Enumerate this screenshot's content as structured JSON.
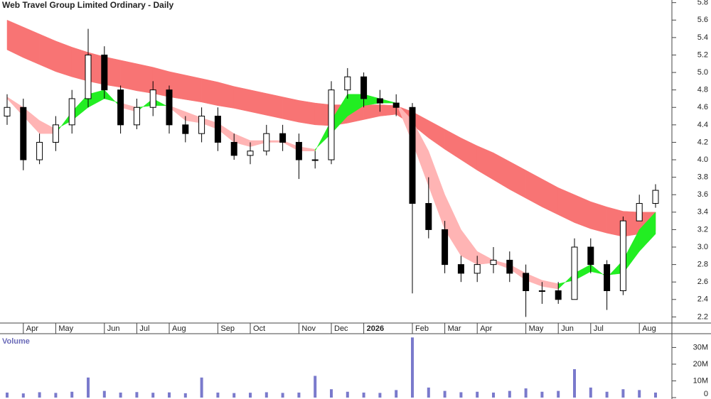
{
  "chart_data": {
    "type": "candlestick",
    "title": "Web Travel Group Limited Ordinary - Daily",
    "categories": [
      null,
      "Apr",
      null,
      "May",
      null,
      null,
      "Jun",
      null,
      "Jul",
      null,
      "Aug",
      null,
      null,
      "Sep",
      null,
      "Oct",
      null,
      null,
      "Nov",
      null,
      "Dec",
      null,
      "2026",
      null,
      null,
      "Feb",
      null,
      "Mar",
      null,
      "Apr",
      null,
      null,
      "May",
      null,
      "Jun",
      null,
      "Jul",
      null,
      null,
      "Aug",
      null
    ],
    "open": [
      4.5,
      4.6,
      4.0,
      4.2,
      4.4,
      4.7,
      5.2,
      4.8,
      4.4,
      4.6,
      4.8,
      4.4,
      4.3,
      4.5,
      4.2,
      4.05,
      4.1,
      4.3,
      4.2,
      4.0,
      4.0,
      4.8,
      4.95,
      4.7,
      4.65,
      4.6,
      3.5,
      3.2,
      2.8,
      2.7,
      2.8,
      2.85,
      2.7,
      2.5,
      2.5,
      2.4,
      3.0,
      2.8,
      2.5,
      3.3,
      3.5
    ],
    "high": [
      4.75,
      4.7,
      4.3,
      4.5,
      4.8,
      5.5,
      5.3,
      4.85,
      4.7,
      4.9,
      4.85,
      4.5,
      4.6,
      4.6,
      4.3,
      4.2,
      4.4,
      4.4,
      4.3,
      4.1,
      4.9,
      5.05,
      5.0,
      4.8,
      4.75,
      4.65,
      3.8,
      3.3,
      2.9,
      2.9,
      3.0,
      2.95,
      2.8,
      2.6,
      2.6,
      3.1,
      3.1,
      2.85,
      3.35,
      3.6,
      3.72
    ],
    "low": [
      4.4,
      3.88,
      3.95,
      4.1,
      4.3,
      4.6,
      4.7,
      4.3,
      4.35,
      4.5,
      4.3,
      4.2,
      4.2,
      4.1,
      4.0,
      3.95,
      4.05,
      4.1,
      3.78,
      3.9,
      3.95,
      4.7,
      4.6,
      4.55,
      4.5,
      2.47,
      3.1,
      2.7,
      2.6,
      2.6,
      2.7,
      2.6,
      2.2,
      2.35,
      2.35,
      2.4,
      2.7,
      2.28,
      2.45,
      3.3,
      3.45
    ],
    "close": [
      4.6,
      4.0,
      4.2,
      4.4,
      4.7,
      5.2,
      4.8,
      4.4,
      4.6,
      4.8,
      4.4,
      4.3,
      4.5,
      4.2,
      4.05,
      4.1,
      4.3,
      4.2,
      4.0,
      4.0,
      4.8,
      4.95,
      4.7,
      4.65,
      4.6,
      3.5,
      3.2,
      2.8,
      2.7,
      2.8,
      2.85,
      2.7,
      2.5,
      2.5,
      2.4,
      3.0,
      2.8,
      2.5,
      3.3,
      3.5,
      3.65
    ],
    "long_band": {
      "color": "#f87474",
      "upper": [
        5.6,
        5.52,
        5.44,
        5.36,
        5.29,
        5.23,
        5.18,
        5.14,
        5.1,
        5.06,
        5.01,
        4.97,
        4.93,
        4.89,
        4.84,
        4.8,
        4.76,
        4.72,
        4.68,
        4.65,
        4.63,
        4.63,
        4.63,
        4.63,
        4.62,
        4.55,
        4.45,
        4.35,
        4.25,
        4.16,
        4.08,
        3.98,
        3.88,
        3.78,
        3.68,
        3.6,
        3.52,
        3.46,
        3.41,
        3.4,
        3.4
      ],
      "lower": [
        5.26,
        5.17,
        5.09,
        5.01,
        4.95,
        4.9,
        4.86,
        4.83,
        4.79,
        4.76,
        4.72,
        4.69,
        4.66,
        4.62,
        4.59,
        4.55,
        4.51,
        4.47,
        4.43,
        4.4,
        4.39,
        4.42,
        4.46,
        4.5,
        4.52,
        4.4,
        4.25,
        4.12,
        4.0,
        3.88,
        3.77,
        3.66,
        3.56,
        3.46,
        3.37,
        3.28,
        3.21,
        3.16,
        3.12,
        3.15,
        3.19
      ]
    },
    "short_band": {
      "color": "#ffb4b4",
      "rising_color": "#22ee22",
      "fast": [
        4.7,
        4.5,
        4.3,
        4.3,
        4.55,
        4.75,
        4.8,
        4.6,
        4.55,
        4.7,
        4.6,
        4.45,
        4.42,
        4.35,
        4.2,
        4.15,
        4.2,
        4.2,
        4.1,
        4.1,
        4.45,
        4.75,
        4.75,
        4.7,
        4.65,
        4.2,
        3.7,
        3.2,
        2.9,
        2.8,
        2.82,
        2.75,
        2.62,
        2.55,
        2.52,
        2.7,
        2.8,
        2.65,
        2.85,
        3.2,
        3.4
      ],
      "slow": [
        4.72,
        4.6,
        4.45,
        4.35,
        4.45,
        4.6,
        4.7,
        4.65,
        4.6,
        4.62,
        4.62,
        4.55,
        4.48,
        4.42,
        4.3,
        4.22,
        4.22,
        4.22,
        4.15,
        4.12,
        4.3,
        4.5,
        4.62,
        4.65,
        4.65,
        4.45,
        4.1,
        3.6,
        3.2,
        2.95,
        2.85,
        2.8,
        2.7,
        2.62,
        2.58,
        2.62,
        2.72,
        2.68,
        2.7,
        2.95,
        3.15
      ]
    },
    "ylim": [
      2.13,
      5.83
    ],
    "yticks": [
      2.2,
      2.4,
      2.6,
      2.8,
      {
        "value": 3,
        "label": "3.0"
      },
      3.2,
      3.4,
      3.6,
      3.8,
      {
        "value": 4,
        "label": "4.0"
      },
      4.2,
      4.4,
      4.6,
      4.8,
      {
        "value": 5,
        "label": "5.0"
      },
      5.2,
      5.4,
      5.6,
      5.8
    ],
    "volume": {
      "label": "Volume",
      "color": "#7a7acc",
      "values": [
        3000000,
        2500000,
        3200000,
        2800000,
        3500000,
        12000000,
        4000000,
        3000000,
        3300000,
        2900000,
        3100000,
        2600000,
        12000000,
        3000000,
        2700000,
        2900000,
        3200000,
        2800000,
        3000000,
        13000000,
        5000000,
        3500000,
        3000000,
        2800000,
        4500000,
        36000000,
        6000000,
        4000000,
        3200000,
        3500000,
        3000000,
        4000000,
        5500000,
        3500000,
        4000000,
        17000000,
        6000000,
        3500000,
        5000000,
        4500000,
        3000000
      ],
      "ylim": [
        0,
        37400000
      ],
      "yticks": [
        0,
        {
          "value": 10000000,
          "label": "10M"
        },
        {
          "value": 20000000,
          "label": "20M"
        },
        {
          "value": 30000000,
          "label": "30M"
        }
      ]
    }
  }
}
